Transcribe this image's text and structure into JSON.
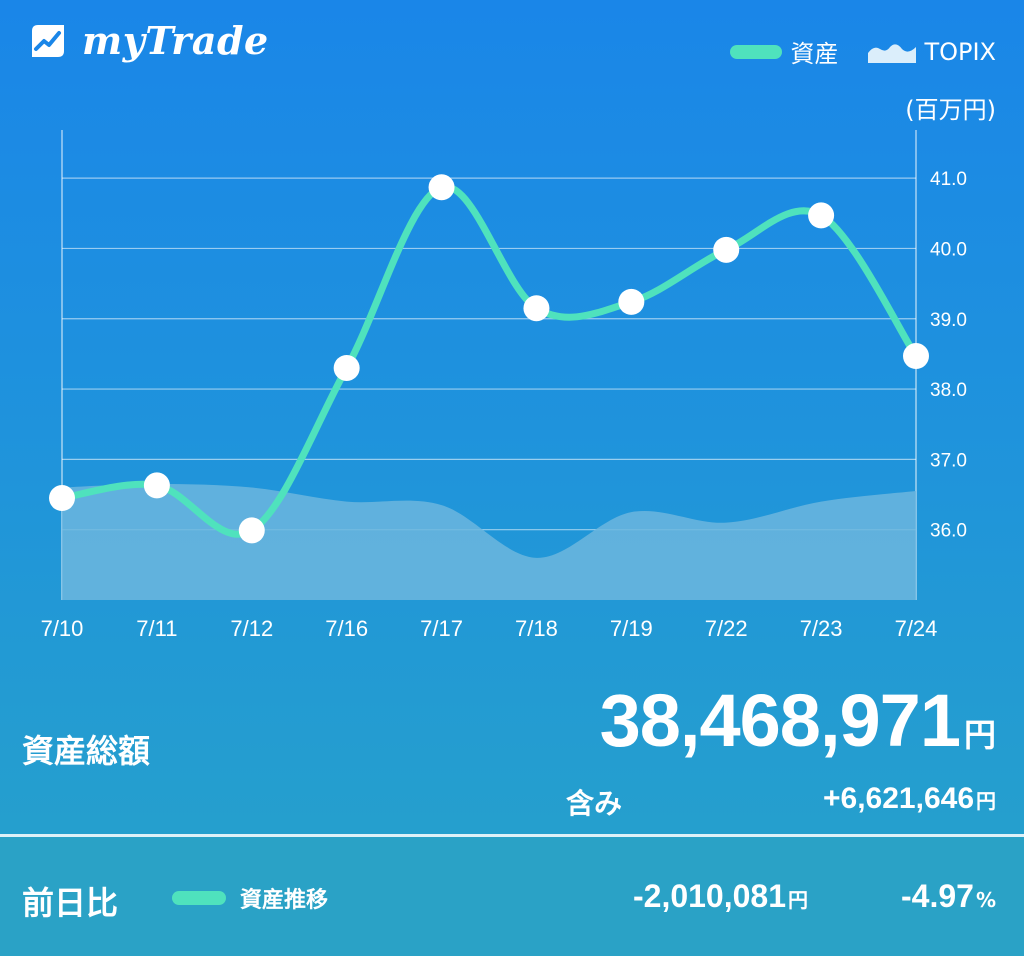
{
  "app": {
    "name": "myTrade"
  },
  "legend": {
    "asset_label": "資産",
    "topix_label": "TOPIX"
  },
  "colors": {
    "asset_line": "#4fe2bd",
    "topix_area": "#6cb6de",
    "background_top": "#1a86e8",
    "background_bottom": "#27a3c9"
  },
  "unit_label": "(百万円)",
  "chart_data": {
    "type": "line",
    "x": [
      "7/10",
      "7/11",
      "7/12",
      "7/16",
      "7/17",
      "7/18",
      "7/19",
      "7/22",
      "7/23",
      "7/24"
    ],
    "series": [
      {
        "name": "資産",
        "values": [
          36.45,
          36.63,
          35.99,
          38.3,
          40.87,
          39.15,
          39.24,
          39.98,
          40.47,
          38.47
        ]
      },
      {
        "name": "TOPIX",
        "type": "area",
        "values": [
          36.6,
          36.65,
          36.6,
          36.4,
          36.35,
          35.6,
          36.25,
          36.1,
          36.4,
          36.55
        ]
      }
    ],
    "y_ticks": [
      36.0,
      37.0,
      38.0,
      39.0,
      40.0,
      41.0
    ],
    "y_tick_labels": [
      "36.0",
      "37.0",
      "38.0",
      "39.0",
      "40.0",
      "41.0"
    ],
    "ylim": [
      35.0,
      41.4
    ],
    "y_axis_position": "right",
    "grid": true,
    "legend_position": "top-right"
  },
  "summary": {
    "total_label": "資産総額",
    "total_value": "38,468,971",
    "total_unit": "円",
    "included_label": "含み",
    "included_value": "+6,621,646",
    "included_unit": "円"
  },
  "footer": {
    "compare_label": "前日比",
    "trend_label": "資産推移",
    "diff_value": "-2,010,081",
    "diff_unit": "円",
    "pct_value": "-4.97",
    "pct_unit": "%"
  }
}
